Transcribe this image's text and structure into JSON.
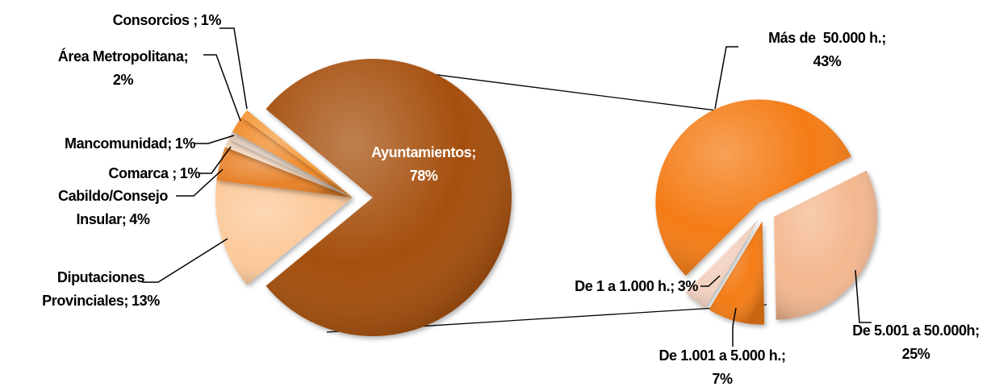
{
  "chart_data": [
    {
      "type": "pie",
      "categories": [
        "Ayuntamientos;",
        "Diputaciones Provinciales;",
        "Cabildo/Consejo Insular;",
        "Comarca ;",
        "Mancomunidad;",
        "Área Metropolitana;",
        "Consorcios ;"
      ],
      "values": [
        78,
        13,
        4,
        1,
        1,
        2,
        1
      ],
      "value_labels": [
        "78%",
        "13%",
        "4%",
        "1%",
        "1%",
        "2%",
        "1%"
      ],
      "colors": [
        "#a5500f",
        "#fcc99a",
        "#e8822a",
        "#f3d6bd",
        "#dcc7b6",
        "#f08a2a",
        "#f49b3a"
      ]
    },
    {
      "type": "pie",
      "categories": [
        "Más de  50.000 h.;",
        "De 5.001 a 50.000h;",
        "De 1.001 a 5.000 h.;",
        "De 1 a 1.000 h.;"
      ],
      "values": [
        43,
        25,
        7,
        3
      ],
      "value_labels": [
        "43%",
        "25%",
        "7%",
        "3%"
      ],
      "colors": [
        "#f47b13",
        "#f4b890",
        "#f47b13",
        "#f2d1c0"
      ]
    }
  ]
}
